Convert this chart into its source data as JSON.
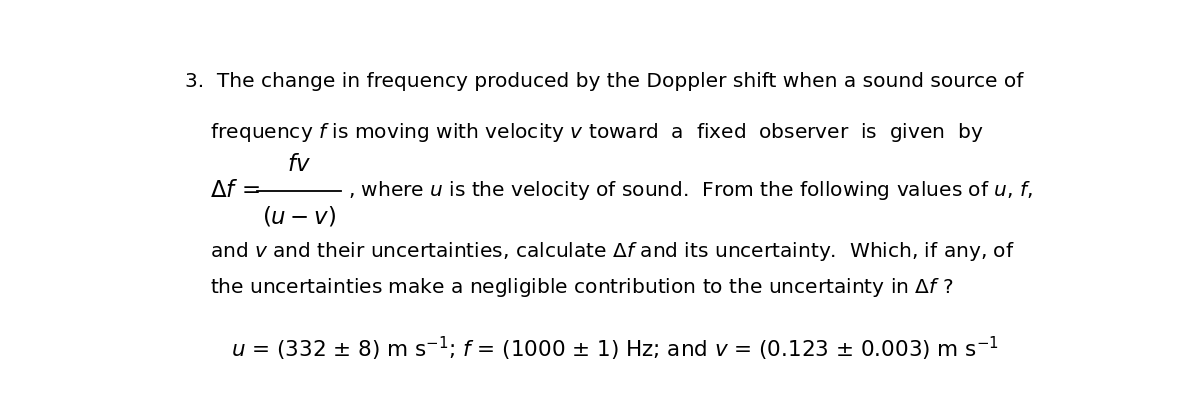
{
  "background_color": "#ffffff",
  "fig_width": 12.0,
  "fig_height": 4.12,
  "dpi": 100,
  "text_color": "#000000",
  "line1": "3.  The change in frequency produced by the Doppler shift when a sound source of",
  "line2": "    frequency $f$ is moving with velocity $v$ toward  a  fixed  observer  is  given  by",
  "formula_lhs": "$\\Delta f\\,=$",
  "formula_num": "$fv$",
  "formula_den": "$(u-v)$",
  "formula_rest": ", where $u$ is the velocity of sound.  From the following values of $u$, $f$,",
  "line4": "and $v$ and their uncertainties, calculate $\\Delta f$ and its uncertainty.  Which, if any, of",
  "line5": "the uncertainties make a negligible contribution to the uncertainty in $\\Delta f$ ?",
  "line6": "$u$ = (332 ± 8) m s$^{-1}$; $f$ = (1000 ± 1) Hz; and $v$ = (0.123 ± 0.003) m s$^{-1}$",
  "fontsize_main": 14.5,
  "fontsize_formula": 15.5
}
